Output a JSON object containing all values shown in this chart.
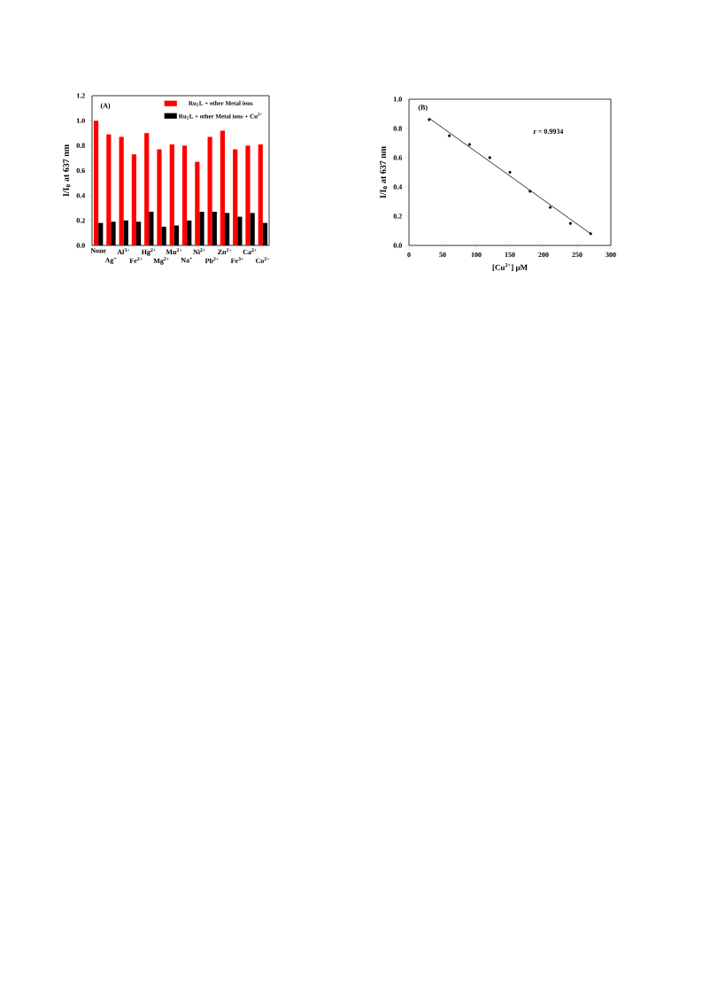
{
  "chart_data": [
    {
      "type": "bar",
      "ylabel": "I/I$_{0}$ at 637 nm",
      "annotations": [
        "(A)"
      ],
      "categories": [
        "None",
        "Ag$^{+}$",
        "Al$^{3+}$",
        "Fe$^{2+}$",
        "Hg$^{2+}$",
        "Mg$^{2+}$",
        "Mn$^{2+}$",
        "Na$^{+}$",
        "Ni$^{2+}$",
        "Pb$^{2+}$",
        "Zn$^{2+}$",
        "Fe$^{3+}$",
        "Ca$^{2+}$",
        "Co$^{2+}$"
      ],
      "series": [
        {
          "name": "Ru$_{2}$L + other Metal ions",
          "color": "#ff0000",
          "values": [
            1.0,
            0.89,
            0.87,
            0.73,
            0.9,
            0.77,
            0.81,
            0.8,
            0.67,
            0.87,
            0.92,
            0.77,
            0.8,
            0.81
          ]
        },
        {
          "name": "Ru$_{2}$L + other Metal ions + Cu$^{2+}$",
          "color": "#000000",
          "values": [
            0.18,
            0.19,
            0.2,
            0.19,
            0.27,
            0.15,
            0.16,
            0.2,
            0.27,
            0.27,
            0.26,
            0.23,
            0.26,
            0.18
          ]
        }
      ],
      "ylim": [
        0,
        1.2
      ],
      "yticks": [
        {
          "value": 0,
          "label": "0.0"
        },
        {
          "value": 0.2,
          "label": "0.2"
        },
        {
          "value": 0.4,
          "label": "0.4"
        },
        {
          "value": 0.6,
          "label": "0.6"
        },
        {
          "value": 0.8,
          "label": "0.8"
        },
        {
          "value": 1.0,
          "label": "1.0"
        },
        {
          "value": 1.2,
          "label": "1.2"
        }
      ],
      "legend": "top right"
    },
    {
      "type": "scatter",
      "xlabel": "[Cu$^{2+}$] μM",
      "ylabel": "I/I$_{0}$ at 637 nm",
      "annotations": [
        "(B)",
        "r = 0.9934"
      ],
      "series": [
        {
          "type": "scatter",
          "marker": "circle",
          "color": "#000000",
          "x": [
            30,
            60,
            90,
            120,
            150,
            180,
            210,
            240,
            270
          ],
          "values": [
            0.86,
            0.75,
            0.69,
            0.6,
            0.5,
            0.37,
            0.26,
            0.15,
            0.08
          ]
        },
        {
          "type": "line",
          "marker": "none",
          "color": "#000000",
          "x": [
            30,
            270
          ],
          "values": [
            0.87,
            0.08
          ]
        }
      ],
      "xlim": [
        0,
        300
      ],
      "xticks": [
        0,
        50,
        100,
        150,
        200,
        250,
        300
      ],
      "ylim": [
        0,
        1.0
      ],
      "yticks": [
        {
          "value": 0,
          "label": "0.0"
        },
        {
          "value": 0.2,
          "label": "0.2"
        },
        {
          "value": 0.4,
          "label": "0.4"
        },
        {
          "value": 0.6,
          "label": "0.6"
        },
        {
          "value": 0.8,
          "label": "0.8"
        },
        {
          "value": 1.0,
          "label": "1.0"
        }
      ]
    }
  ]
}
